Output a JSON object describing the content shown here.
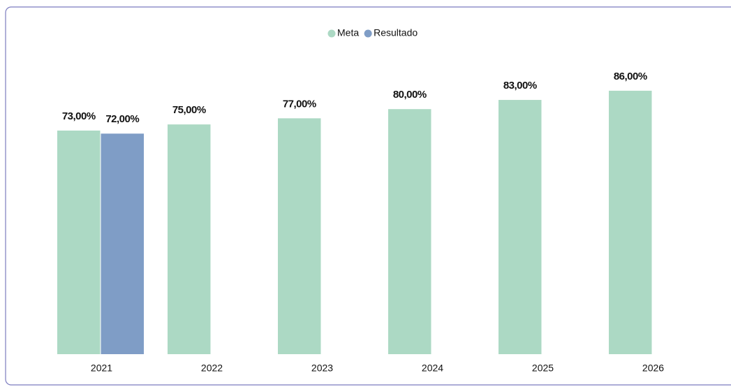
{
  "chart_data": {
    "type": "bar",
    "categories": [
      "2021",
      "2022",
      "2023",
      "2024",
      "2025",
      "2026"
    ],
    "series": [
      {
        "name": "Meta",
        "color": "#acd9c4",
        "values": [
          73,
          75,
          77,
          80,
          83,
          86
        ],
        "value_labels": [
          "73,00%",
          "75,00%",
          "77,00%",
          "80,00%",
          "83,00%",
          "86,00%"
        ]
      },
      {
        "name": "Resultado",
        "color": "#7f9dc6",
        "values": [
          72,
          null,
          null,
          null,
          null,
          null
        ],
        "value_labels": [
          "72,00%",
          null,
          null,
          null,
          null,
          null
        ]
      }
    ],
    "ylim": [
      0,
      100
    ],
    "legend": "top"
  }
}
